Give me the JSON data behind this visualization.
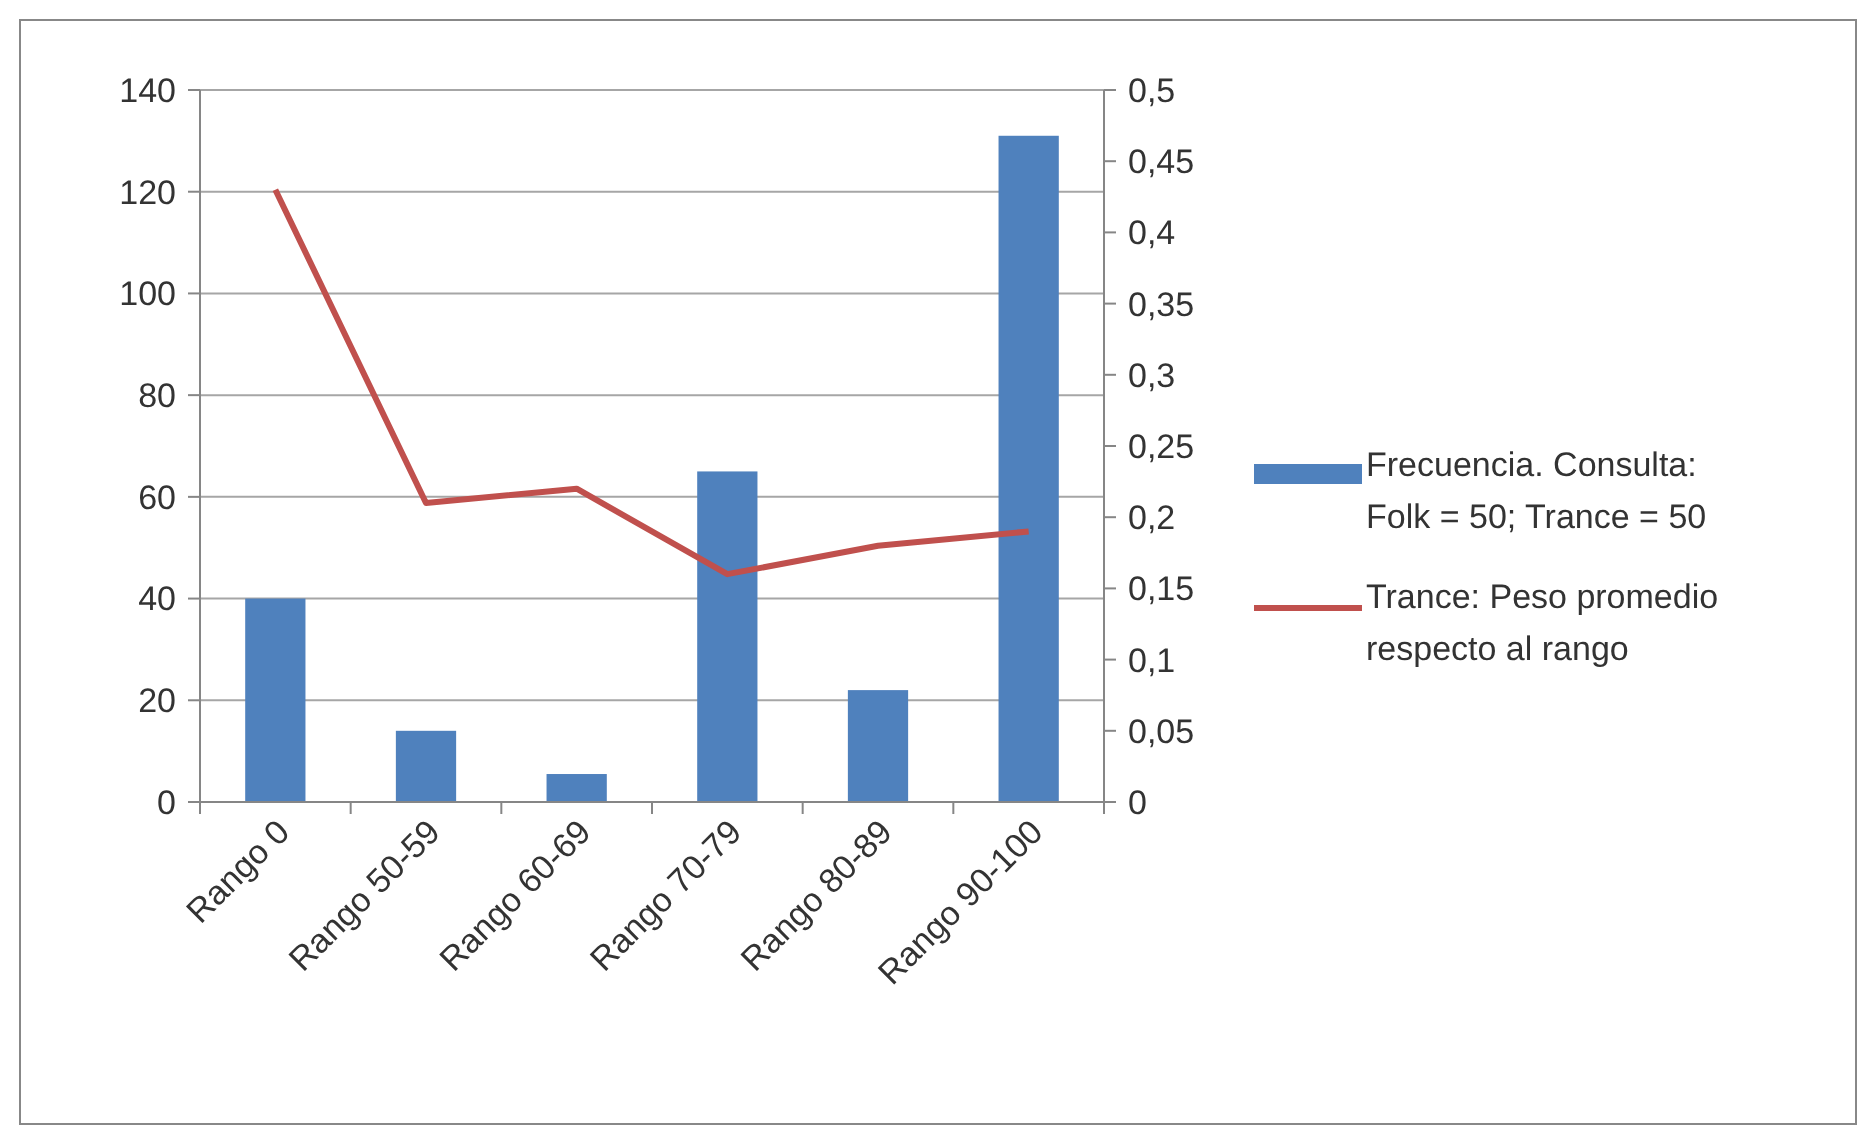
{
  "chart_data": {
    "type": "bar",
    "categories": [
      "Rango 0",
      "Rango 50-59",
      "Rango 60-69",
      "Rango 70-79",
      "Rango 80-89",
      "Rango 90-100"
    ],
    "series": [
      {
        "name": "Frecuencia. Consulta: Folk = 50; Trance = 50",
        "color": "#4f81bd",
        "values": [
          40,
          14,
          5.5,
          65,
          22,
          131
        ]
      },
      {
        "name": "Trance: Peso promedio respecto al rango",
        "type": "line",
        "axis": "y2",
        "color": "#c0504d",
        "values": [
          0.43,
          0.21,
          0.22,
          0.16,
          0.18,
          0.19
        ]
      }
    ],
    "ylim": [
      0,
      140
    ],
    "yticks": [
      0,
      20,
      40,
      60,
      80,
      100,
      120,
      140
    ],
    "y2lim": [
      0,
      0.5
    ],
    "y2ticks": [
      0,
      {
        "value": 0.05,
        "label": "0,05"
      },
      {
        "value": 0.1,
        "label": "0,1"
      },
      {
        "value": 0.15,
        "label": "0,15"
      },
      {
        "value": 0.2,
        "label": "0,2"
      },
      {
        "value": 0.25,
        "label": "0,25"
      },
      {
        "value": 0.3,
        "label": "0,3"
      },
      {
        "value": 0.35,
        "label": "0,35"
      },
      {
        "value": 0.4,
        "label": "0,4"
      },
      {
        "value": 0.45,
        "label": "0,45"
      },
      {
        "value": 0.5,
        "label": "0,5"
      }
    ],
    "grid": "y",
    "legend": "right"
  }
}
